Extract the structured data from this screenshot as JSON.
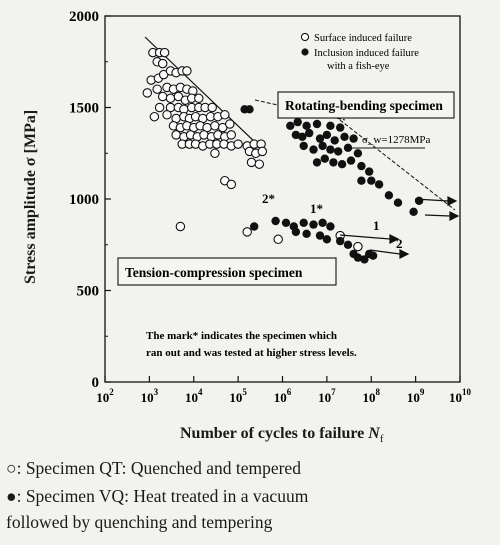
{
  "chart_data": {
    "type": "scatter",
    "x_scale": "log",
    "xlim": [
      100,
      10000000000
    ],
    "ylim": [
      0,
      2000
    ],
    "yticks": [
      0,
      500,
      1000,
      1500,
      2000
    ],
    "xtick_exponents": [
      "2",
      "3",
      "4",
      "5",
      "6",
      "7",
      "8",
      "9",
      "10"
    ],
    "xlabel": "Number of cycles to failure ",
    "xlabel_var": "N",
    "xlabel_sub": "f",
    "ylabel": "Stress amplitude   σ [MPa]",
    "legend": [
      {
        "label": "Surface induced failure",
        "marker": "open-circle"
      },
      {
        "label": "Inclusion induced failure",
        "label2": "with a fish-eye",
        "marker": "filled-circle"
      }
    ],
    "annotations": {
      "rotating_bending": "Rotating-bending specimen",
      "tension_compression": "Tension-compression specimen",
      "sigma_label": "σ_w=1278MPa",
      "sigma_value": 1278,
      "note_line1": "The mark* indicates the specimen which",
      "note_line2": "ran out and was tested at higher stress levels.",
      "mark_1": "1",
      "mark_1s": "1*",
      "mark_2": "2",
      "mark_2s": "2*"
    },
    "series": [
      {
        "name": "Surface induced failure",
        "marker": "open",
        "points": [
          [
            1200,
            1800
          ],
          [
            1700,
            1800
          ],
          [
            2200,
            1800
          ],
          [
            1500,
            1750
          ],
          [
            2000,
            1740
          ],
          [
            1100,
            1650
          ],
          [
            1600,
            1660
          ],
          [
            2100,
            1680
          ],
          [
            3000,
            1700
          ],
          [
            4000,
            1690
          ],
          [
            5500,
            1700
          ],
          [
            7000,
            1700
          ],
          [
            1500,
            1600
          ],
          [
            2500,
            1610
          ],
          [
            3500,
            1600
          ],
          [
            5000,
            1610
          ],
          [
            7000,
            1600
          ],
          [
            9500,
            1590
          ],
          [
            900,
            1580
          ],
          [
            2000,
            1560
          ],
          [
            3000,
            1550
          ],
          [
            4500,
            1560
          ],
          [
            6500,
            1540
          ],
          [
            9000,
            1550
          ],
          [
            13000,
            1550
          ],
          [
            1700,
            1500
          ],
          [
            3000,
            1500
          ],
          [
            4500,
            1500
          ],
          [
            6000,
            1490
          ],
          [
            9000,
            1500
          ],
          [
            13000,
            1500
          ],
          [
            18000,
            1500
          ],
          [
            26000,
            1500
          ],
          [
            1300,
            1450
          ],
          [
            2500,
            1460
          ],
          [
            4000,
            1440
          ],
          [
            6000,
            1450
          ],
          [
            8000,
            1440
          ],
          [
            11000,
            1450
          ],
          [
            16000,
            1440
          ],
          [
            24000,
            1450
          ],
          [
            35000,
            1450
          ],
          [
            50000,
            1460
          ],
          [
            3500,
            1400
          ],
          [
            5000,
            1390
          ],
          [
            7000,
            1400
          ],
          [
            10000,
            1390
          ],
          [
            14000,
            1400
          ],
          [
            20000,
            1390
          ],
          [
            30000,
            1400
          ],
          [
            45000,
            1390
          ],
          [
            65000,
            1410
          ],
          [
            4000,
            1350
          ],
          [
            6000,
            1340
          ],
          [
            8500,
            1350
          ],
          [
            12000,
            1340
          ],
          [
            17000,
            1350
          ],
          [
            25000,
            1340
          ],
          [
            35000,
            1350
          ],
          [
            50000,
            1340
          ],
          [
            70000,
            1350
          ],
          [
            5500,
            1300
          ],
          [
            8000,
            1300
          ],
          [
            11000,
            1300
          ],
          [
            16000,
            1290
          ],
          [
            23000,
            1300
          ],
          [
            33000,
            1300
          ],
          [
            48000,
            1300
          ],
          [
            70000,
            1290
          ],
          [
            100000,
            1300
          ],
          [
            160000,
            1290
          ],
          [
            230000,
            1300
          ],
          [
            330000,
            1300
          ],
          [
            30000,
            1250
          ],
          [
            180000,
            1260
          ],
          [
            250000,
            1250
          ],
          [
            350000,
            1260
          ],
          [
            200000,
            1200
          ],
          [
            300000,
            1190
          ],
          [
            50000,
            1100
          ],
          [
            70000,
            1080
          ],
          [
            5000,
            850
          ],
          [
            160000,
            820
          ],
          [
            800000,
            780
          ],
          [
            20000000,
            800
          ],
          [
            50000000,
            740
          ]
        ]
      },
      {
        "name": "Inclusion induced failure with a fish-eye",
        "marker": "filled",
        "points": [
          [
            140000,
            1490
          ],
          [
            180000,
            1490
          ],
          [
            1500000,
            1400
          ],
          [
            2200000,
            1420
          ],
          [
            3500000,
            1400
          ],
          [
            6000000,
            1410
          ],
          [
            12000000,
            1400
          ],
          [
            20000000,
            1390
          ],
          [
            2000000,
            1350
          ],
          [
            2800000,
            1340
          ],
          [
            4000000,
            1360
          ],
          [
            7000000,
            1330
          ],
          [
            10000000,
            1350
          ],
          [
            15000000,
            1320
          ],
          [
            25000000,
            1340
          ],
          [
            40000000,
            1330
          ],
          [
            3000000,
            1290
          ],
          [
            5000000,
            1270
          ],
          [
            8000000,
            1290
          ],
          [
            12000000,
            1270
          ],
          [
            18000000,
            1260
          ],
          [
            30000000,
            1280
          ],
          [
            50000000,
            1250
          ],
          [
            6000000,
            1200
          ],
          [
            9000000,
            1220
          ],
          [
            14000000,
            1200
          ],
          [
            22000000,
            1190
          ],
          [
            35000000,
            1210
          ],
          [
            60000000,
            1180
          ],
          [
            90000000,
            1150
          ],
          [
            60000000,
            1100
          ],
          [
            100000000,
            1100
          ],
          [
            150000000,
            1080
          ],
          [
            250000000,
            1020
          ],
          [
            400000000,
            980
          ],
          [
            1200000000,
            990
          ],
          [
            900000000,
            930
          ],
          [
            230000,
            850
          ],
          [
            700000,
            880
          ],
          [
            1200000,
            870
          ],
          [
            1800000,
            850
          ],
          [
            3000000,
            870
          ],
          [
            5000000,
            860
          ],
          [
            8000000,
            870
          ],
          [
            12000000,
            850
          ],
          [
            2000000,
            820
          ],
          [
            3500000,
            810
          ],
          [
            7000000,
            800
          ],
          [
            10000000,
            780
          ],
          [
            20000000,
            770
          ],
          [
            30000000,
            750
          ],
          [
            40000000,
            700
          ],
          [
            50000000,
            680
          ],
          [
            70000000,
            670
          ],
          [
            90000000,
            700
          ],
          [
            110000000,
            690
          ]
        ]
      }
    ],
    "caption_open": "Specimen QT: Quenched and tempered",
    "caption_filled_1": "Specimen VQ: Heat treated in a vacuum",
    "caption_filled_2": "followed by quenching and tempering"
  }
}
